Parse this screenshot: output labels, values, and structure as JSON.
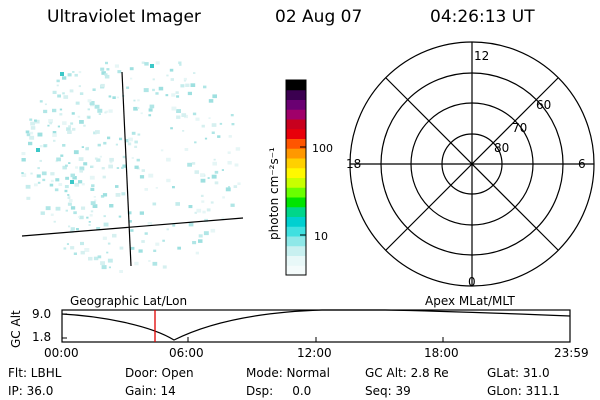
{
  "header": {
    "instrument": "Ultraviolet Imager",
    "date": "02 Aug 07",
    "time": "04:26:13 UT"
  },
  "colorbar": {
    "label": "photon cm⁻²s⁻¹",
    "ticks": [
      "100",
      "10"
    ],
    "colors": [
      "#000000",
      "#3b0050",
      "#6a0072",
      "#a0006a",
      "#c8001e",
      "#e8000a",
      "#ff5500",
      "#ff9800",
      "#ffd000",
      "#fff800",
      "#c8ff00",
      "#6aff00",
      "#00e400",
      "#00d68a",
      "#00d0d0",
      "#40e0e0",
      "#8ee8e8",
      "#c8f0f0",
      "#e8f8f8",
      "#f4fbfb"
    ]
  },
  "polar_plot": {
    "mlt_labels": {
      "top": "12",
      "left": "18",
      "right": "6",
      "bottom": "0"
    },
    "lat_labels": [
      "60",
      "70",
      "80"
    ]
  },
  "timeline": {
    "ylabel": "GC Alt",
    "yticks": [
      "9.0",
      "1.8"
    ],
    "left_title": "Geographic Lat/Lon",
    "right_title": "Apex MLat/MLT",
    "xticks": [
      "00:00",
      "06:00",
      "12:00",
      "18:00",
      "23:59"
    ]
  },
  "status": {
    "flt": "Flt: LBHL",
    "ip": "IP: 36.0",
    "door": "Door: Open",
    "gain": "Gain: 14",
    "mode": "Mode: Normal",
    "dsp": "Dsp:     0.0",
    "gcalt": "GC Alt: 2.8 Re",
    "seq": "Seq: 39",
    "glat": "GLat: 31.0",
    "glon": "GLon: 311.1"
  }
}
